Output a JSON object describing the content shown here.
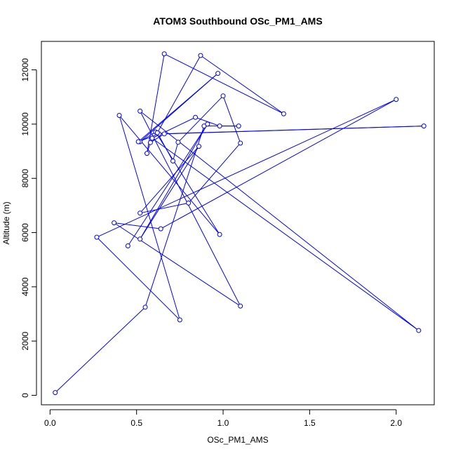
{
  "chart_data": {
    "type": "line",
    "title": "ATOM3 Southbound OSc_PM1_AMS",
    "xlabel": "OSc_PM1_AMS",
    "ylabel": "Altitude (m)",
    "xlim": [
      -0.05,
      2.22
    ],
    "ylim": [
      -350,
      13050
    ],
    "xticks": [
      0.0,
      0.5,
      1.0,
      1.5,
      2.0
    ],
    "xtick_labels": [
      "0.0",
      "0.5",
      "1.0",
      "1.5",
      "2.0"
    ],
    "yticks": [
      0,
      2000,
      4000,
      6000,
      8000,
      10000,
      12000
    ],
    "ytick_labels": [
      "0",
      "2000",
      "4000",
      "6000",
      "8000",
      "10000",
      "12000"
    ],
    "grid": false,
    "legend": "none",
    "line_color": "#0000ff",
    "marker": "open-circle",
    "series": [
      {
        "points": [
          {
            "x": 0.03,
            "y": 100
          },
          {
            "x": 0.55,
            "y": 3250
          },
          {
            "x": 0.89,
            "y": 9930
          },
          {
            "x": 1.09,
            "y": 9930
          },
          {
            "x": 0.98,
            "y": 9930
          },
          {
            "x": 0.84,
            "y": 10250
          },
          {
            "x": 0.59,
            "y": 9480
          },
          {
            "x": 2.13,
            "y": 2390
          },
          {
            "x": 0.52,
            "y": 10480
          },
          {
            "x": 1.1,
            "y": 3290
          },
          {
            "x": 0.37,
            "y": 6360
          },
          {
            "x": 0.64,
            "y": 6140
          },
          {
            "x": 2.0,
            "y": 10910
          },
          {
            "x": 0.27,
            "y": 5830
          },
          {
            "x": 0.75,
            "y": 2780
          },
          {
            "x": 0.4,
            "y": 10320
          },
          {
            "x": 0.98,
            "y": 5930
          },
          {
            "x": 0.61,
            "y": 9710
          },
          {
            "x": 0.52,
            "y": 9350
          },
          {
            "x": 0.97,
            "y": 11870
          },
          {
            "x": 0.51,
            "y": 9350
          },
          {
            "x": 0.63,
            "y": 9640
          },
          {
            "x": 2.16,
            "y": 9930
          },
          {
            "x": 0.66,
            "y": 9640
          },
          {
            "x": 0.58,
            "y": 9320
          },
          {
            "x": 0.56,
            "y": 8920
          },
          {
            "x": 0.66,
            "y": 12590
          },
          {
            "x": 1.35,
            "y": 10380
          },
          {
            "x": 0.87,
            "y": 12530
          },
          {
            "x": 0.62,
            "y": 9680
          },
          {
            "x": 0.71,
            "y": 8640
          },
          {
            "x": 0.74,
            "y": 9330
          },
          {
            "x": 1.0,
            "y": 11040
          },
          {
            "x": 1.1,
            "y": 9300
          },
          {
            "x": 0.8,
            "y": 7090
          },
          {
            "x": 0.52,
            "y": 6720
          },
          {
            "x": 0.86,
            "y": 9180
          },
          {
            "x": 0.52,
            "y": 5760
          },
          {
            "x": 0.91,
            "y": 10000
          },
          {
            "x": 0.45,
            "y": 5510
          }
        ]
      }
    ]
  }
}
